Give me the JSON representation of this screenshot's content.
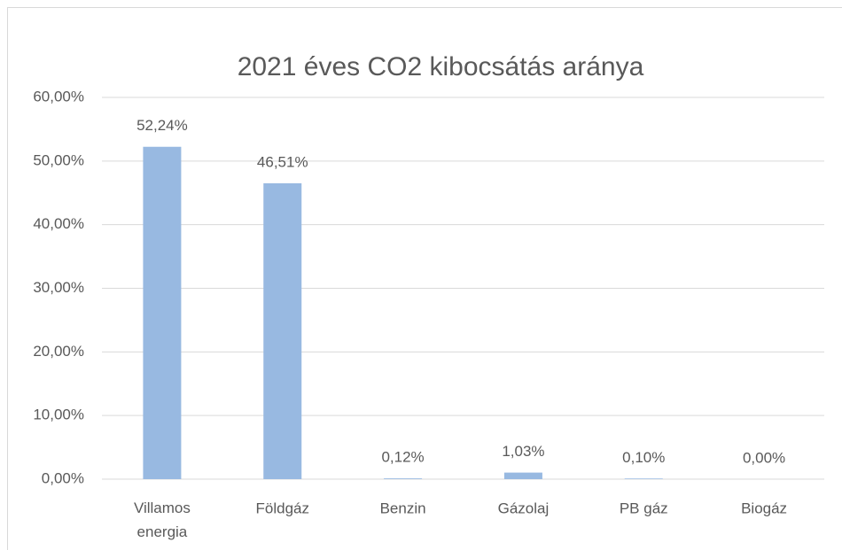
{
  "chart_data": {
    "type": "bar",
    "title": "2021 éves CO2 kibocsátás aránya",
    "categories": [
      "Villamos energia",
      "Földgáz",
      "Benzin",
      "Gázolaj",
      "PB gáz",
      "Biogáz"
    ],
    "values": [
      52.24,
      46.51,
      0.12,
      1.03,
      0.1,
      0.0
    ],
    "value_labels": [
      "52,24%",
      "46,51%",
      "0,12%",
      "1,03%",
      "0,10%",
      "0,00%"
    ],
    "color": "#98b9e1",
    "ylim": [
      0,
      60
    ],
    "yticks": [
      {
        "value": 0,
        "label": "0,00%"
      },
      {
        "value": 10,
        "label": "10,00%"
      },
      {
        "value": 20,
        "label": "20,00%"
      },
      {
        "value": 30,
        "label": "30,00%"
      },
      {
        "value": 40,
        "label": "40,00%"
      },
      {
        "value": 50,
        "label": "50,00%"
      },
      {
        "value": 60,
        "label": "60,00%"
      }
    ],
    "grid": true
  }
}
